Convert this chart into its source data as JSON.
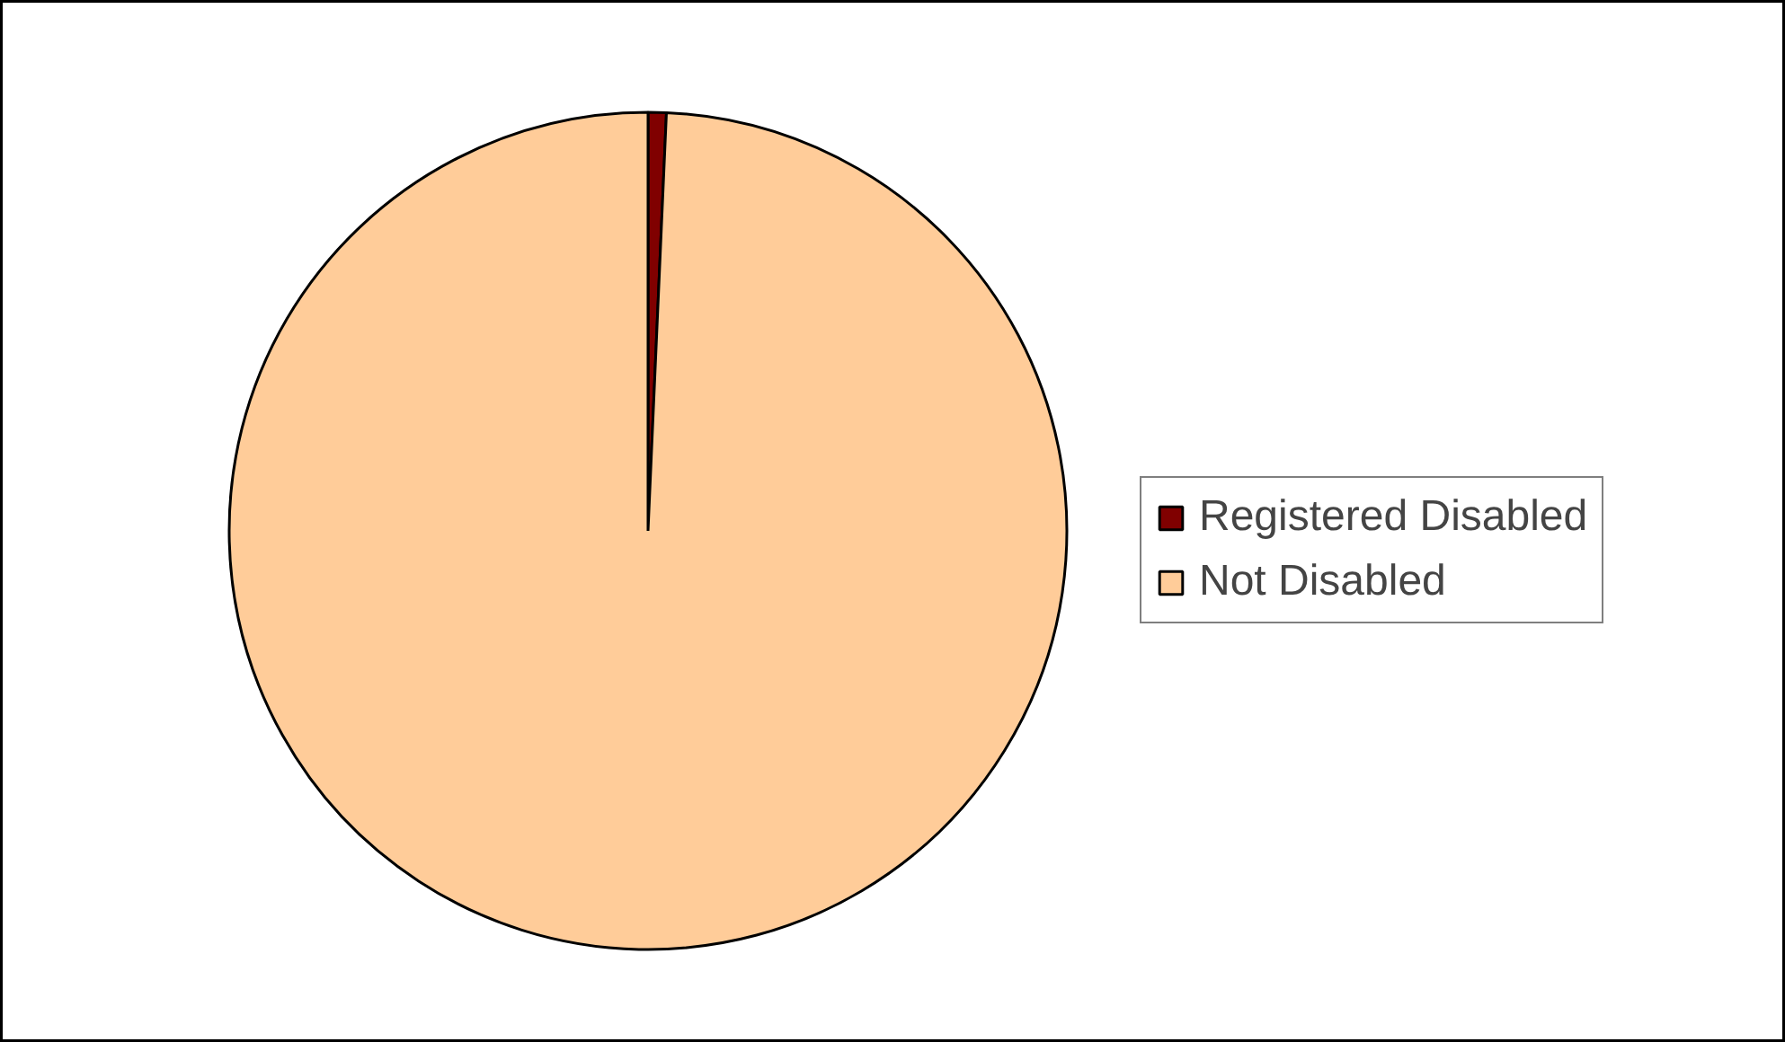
{
  "chart_data": {
    "type": "pie",
    "categories": [
      "Registered Disabled",
      "Not Disabled"
    ],
    "values": [
      0.7,
      99.3
    ],
    "colors": [
      "#800000",
      "#ffcc99"
    ],
    "legend": "right"
  }
}
